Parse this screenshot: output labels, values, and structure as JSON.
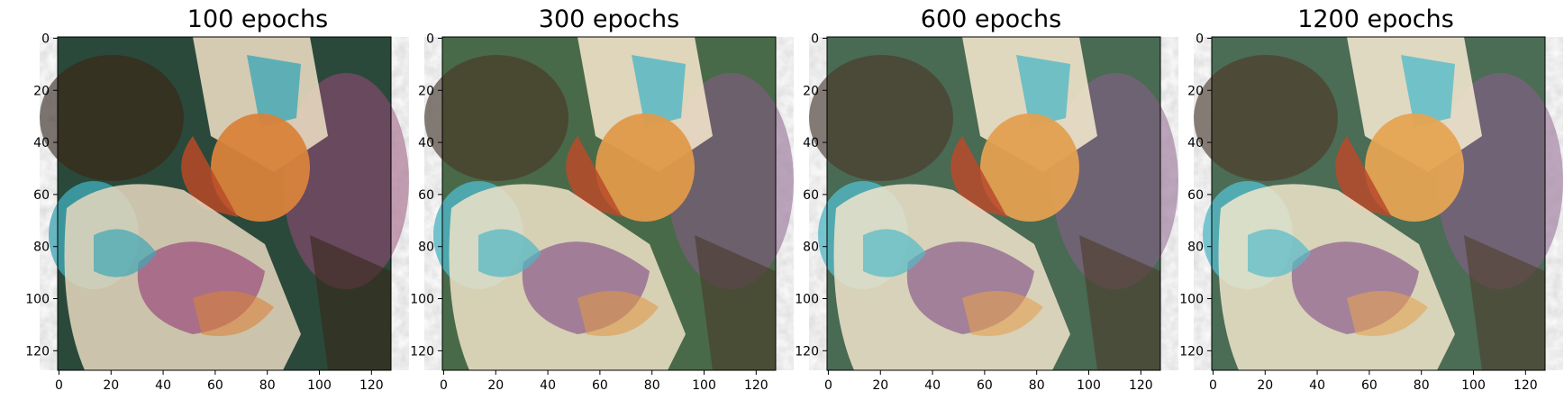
{
  "figure": {
    "panels": [
      {
        "title": "100 epochs",
        "image_description_icon": "stylized-bust-painting-icon",
        "palette": {
          "base": "#2a4a3a",
          "warm": "#d9823a",
          "cool": "#3fa7b5",
          "light": "#e8d8c0",
          "accent": "#9a4a7a",
          "dark": "#3a2a1a"
        }
      },
      {
        "title": "300 epochs",
        "image_description_icon": "stylized-bust-painting-icon",
        "palette": {
          "base": "#4a6a4a",
          "warm": "#e09a4a",
          "cool": "#4fb7c5",
          "light": "#efe2c8",
          "accent": "#8a5a8a",
          "dark": "#4a3a2a"
        }
      },
      {
        "title": "600 epochs",
        "image_description_icon": "stylized-bust-painting-icon",
        "palette": {
          "base": "#4a6a52",
          "warm": "#e3a050",
          "cool": "#52b9c7",
          "light": "#f0e4cb",
          "accent": "#8c5c8c",
          "dark": "#4c3c2c"
        }
      },
      {
        "title": "1200 epochs",
        "image_description_icon": "stylized-bust-painting-icon",
        "palette": {
          "base": "#4c6c54",
          "warm": "#e5a452",
          "cool": "#55bbc9",
          "light": "#f1e6cd",
          "accent": "#8e5e8e",
          "dark": "#4e3e2e"
        }
      }
    ],
    "x_ticks": [
      "0",
      "20",
      "40",
      "60",
      "80",
      "100",
      "120"
    ],
    "y_ticks": [
      "0",
      "20",
      "40",
      "60",
      "80",
      "100",
      "120"
    ],
    "image_extent": [
      0,
      128
    ]
  }
}
